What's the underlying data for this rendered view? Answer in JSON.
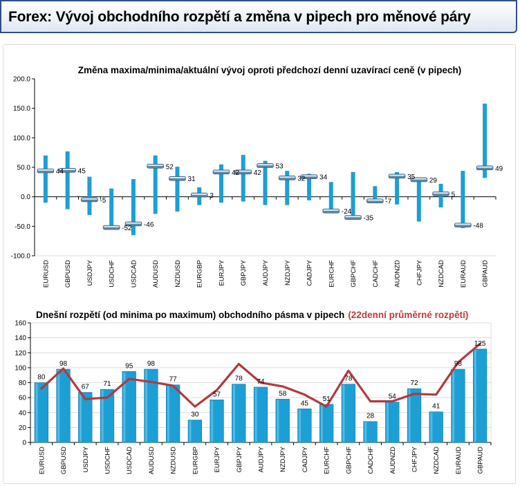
{
  "header": {
    "title": "Forex: Vývoj obchodního rozpětí a změna v pipech pro měnové páry"
  },
  "colors": {
    "bar": "#1c9fd4",
    "line": "#b03a3e",
    "highlight_text": "#c0393b",
    "title_border": "#2d4f86"
  },
  "chart_data": [
    {
      "type": "bar",
      "title": "Změna maxima/minima/aktuální vývoj oproti předchozí denní uzavírací ceně (v pipech)",
      "categories": [
        "EURUSD",
        "GBPUSD",
        "USDJPY",
        "USDCHF",
        "USDCAD",
        "AUDUSD",
        "NZDUSD",
        "EURGBP",
        "EURJPY",
        "GBPJPY",
        "AUDJPY",
        "NZDJPY",
        "CADJPY",
        "EURCHF",
        "GBPCHF",
        "CADCHF",
        "AUDNZD",
        "CHFJPY",
        "NZDCAD",
        "EURAUD",
        "GBPAUD"
      ],
      "series": [
        {
          "name": "",
          "values": [
            70,
            77,
            34,
            14,
            30,
            70,
            51,
            16,
            55,
            71,
            61,
            44,
            39,
            25,
            42,
            18,
            42,
            31,
            22,
            44,
            158
          ]
        },
        {
          "name": "",
          "values": [
            -10,
            -21,
            -31,
            -55,
            -65,
            -29,
            -25,
            -14,
            -10,
            -8,
            -14,
            -14,
            -6,
            -25,
            -37,
            -10,
            -13,
            -42,
            -18,
            -53,
            32
          ]
        },
        {
          "name": "",
          "values": [
            44,
            45,
            -5,
            -52,
            -46,
            52,
            31,
            3,
            42,
            42,
            53,
            32,
            34,
            -24,
            -35,
            -7,
            35,
            29,
            5,
            -48,
            49
          ]
        }
      ],
      "data_labels": [
        "44",
        "45",
        "-5",
        "-52",
        "-46",
        "52",
        "31",
        "3",
        "42",
        "42",
        "53",
        "32",
        "34",
        "-24",
        "-35",
        "-7",
        "35",
        "29",
        "5",
        "-48",
        "49"
      ],
      "yticks": [
        "200.0",
        "150.0",
        "100.0",
        "50.0",
        "0.0",
        "-50.0",
        "-100.0"
      ],
      "ylim": [
        -100,
        200
      ],
      "xlabel": "",
      "ylabel": ""
    },
    {
      "type": "bar",
      "title": "Dnešní rozpětí (od minima po maximum) obchodního pásma v pipech",
      "title_highlight": "(22denní průměrné rozpětí)",
      "categories": [
        "EURUSD",
        "GBPUSD",
        "USDJPY",
        "USDCHF",
        "USDCAD",
        "AUDUSD",
        "NZDUSD",
        "EURGBP",
        "EURJPY",
        "GBPJPY",
        "AUDJPY",
        "NZDJPY",
        "CADJPY",
        "EURCHF",
        "GBPCHF",
        "CADCHF",
        "AUDNZD",
        "CHFJPY",
        "NZDCAD",
        "EURAUD",
        "GBPAUD"
      ],
      "series": [
        {
          "name": "",
          "type": "bar",
          "values": [
            80,
            98,
            67,
            71,
            95,
            98,
            77,
            30,
            57,
            78,
            74,
            58,
            45,
            51,
            78,
            28,
            54,
            72,
            41,
            98,
            125
          ]
        },
        {
          "name": "",
          "type": "line",
          "values": [
            72,
            99,
            58,
            60,
            85,
            81,
            76,
            48,
            70,
            105,
            80,
            75,
            64,
            48,
            96,
            55,
            55,
            65,
            64,
            107,
            132
          ]
        }
      ],
      "data_labels": [
        "80",
        "98",
        "67",
        "71",
        "95",
        "98",
        "77",
        "30",
        "57",
        "78",
        "74",
        "58",
        "45",
        "51",
        "78",
        "28",
        "54",
        "72",
        "41",
        "98",
        "125"
      ],
      "yticks": [
        "160",
        "140",
        "120",
        "100",
        "80",
        "60",
        "40",
        "20",
        "0"
      ],
      "ylim": [
        0,
        160
      ],
      "xlabel": "",
      "ylabel": ""
    }
  ]
}
